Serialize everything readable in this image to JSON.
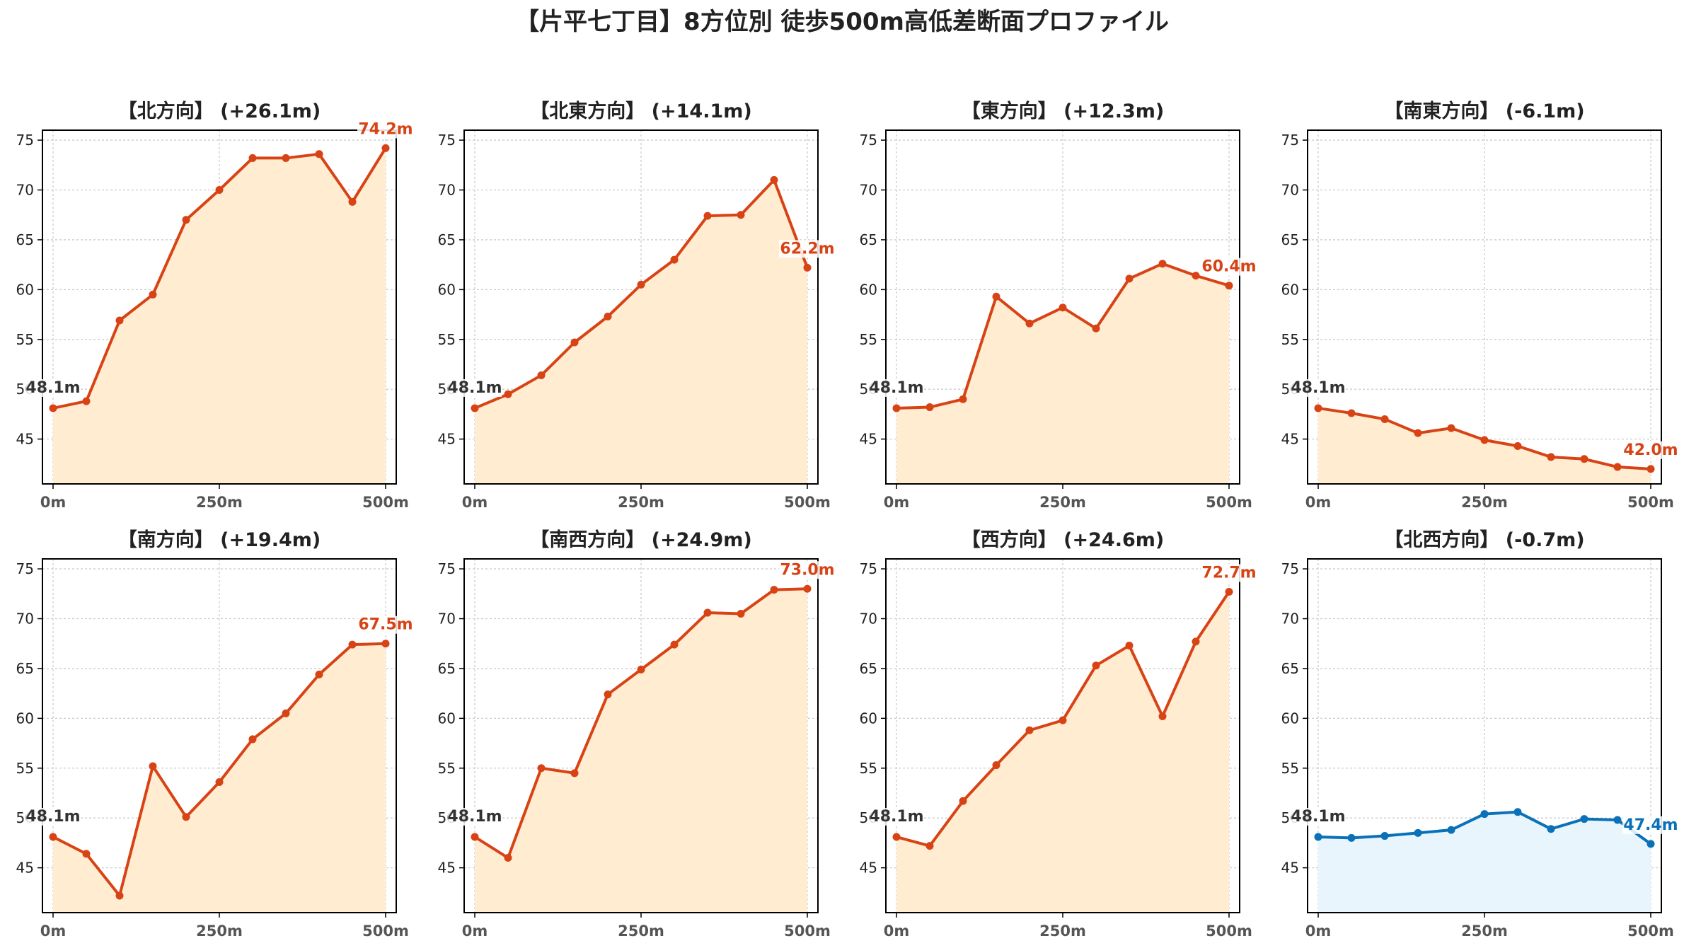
{
  "figure": {
    "title": "【片平七丁目】8方位別 徒歩500m高低差断面プロファイル"
  },
  "style": {
    "up_line_color": "#d84315",
    "up_fill_color": "#ffecd1",
    "down_line_color": "#0a71b8",
    "down_fill_color": "#e8f5fc",
    "start_label_color": "#333333",
    "grid": true
  },
  "chart_data": [
    {
      "type": "area",
      "title": "【北方向】 (+26.1m)",
      "x": [
        0,
        50,
        100,
        150,
        200,
        250,
        300,
        350,
        400,
        450,
        500
      ],
      "values": [
        48.1,
        48.8,
        56.9,
        59.5,
        67.0,
        70.0,
        73.2,
        73.2,
        73.6,
        68.8,
        74.2
      ],
      "start_label": "48.1m",
      "end_label": "74.2m",
      "trend": "up",
      "ylim": [
        40.5,
        76
      ],
      "yticks": [
        45,
        50,
        55,
        60,
        65,
        70,
        75
      ],
      "xticks": [
        0,
        250,
        500
      ],
      "xtick_labels": [
        "0m",
        "250m",
        "500m"
      ]
    },
    {
      "type": "area",
      "title": "【北東方向】 (+14.1m)",
      "x": [
        0,
        50,
        100,
        150,
        200,
        250,
        300,
        350,
        400,
        450,
        500
      ],
      "values": [
        48.1,
        49.5,
        51.4,
        54.7,
        57.3,
        60.5,
        63.0,
        67.4,
        67.5,
        71.0,
        62.2
      ],
      "start_label": "48.1m",
      "end_label": "62.2m",
      "trend": "up",
      "ylim": [
        40.5,
        76
      ],
      "yticks": [
        45,
        50,
        55,
        60,
        65,
        70,
        75
      ],
      "xticks": [
        0,
        250,
        500
      ],
      "xtick_labels": [
        "0m",
        "250m",
        "500m"
      ]
    },
    {
      "type": "area",
      "title": "【東方向】 (+12.3m)",
      "x": [
        0,
        50,
        100,
        150,
        200,
        250,
        300,
        350,
        400,
        450,
        500
      ],
      "values": [
        48.1,
        48.2,
        49.0,
        59.3,
        56.6,
        58.2,
        56.1,
        61.1,
        62.6,
        61.4,
        60.4
      ],
      "start_label": "48.1m",
      "end_label": "60.4m",
      "trend": "up",
      "ylim": [
        40.5,
        76
      ],
      "yticks": [
        45,
        50,
        55,
        60,
        65,
        70,
        75
      ],
      "xticks": [
        0,
        250,
        500
      ],
      "xtick_labels": [
        "0m",
        "250m",
        "500m"
      ]
    },
    {
      "type": "area",
      "title": "【南東方向】 (-6.1m)",
      "x": [
        0,
        50,
        100,
        150,
        200,
        250,
        300,
        350,
        400,
        450,
        500
      ],
      "values": [
        48.1,
        47.6,
        47.0,
        45.6,
        46.1,
        44.9,
        44.3,
        43.2,
        43.0,
        42.2,
        42.0
      ],
      "start_label": "48.1m",
      "end_label": "42.0m",
      "trend": "up",
      "ylim": [
        40.5,
        76
      ],
      "yticks": [
        45,
        50,
        55,
        60,
        65,
        70,
        75
      ],
      "xticks": [
        0,
        250,
        500
      ],
      "xtick_labels": [
        "0m",
        "250m",
        "500m"
      ]
    },
    {
      "type": "area",
      "title": "【南方向】 (+19.4m)",
      "x": [
        0,
        50,
        100,
        150,
        200,
        250,
        300,
        350,
        400,
        450,
        500
      ],
      "values": [
        48.1,
        46.4,
        42.2,
        55.2,
        50.1,
        53.6,
        57.9,
        60.5,
        64.4,
        67.4,
        67.5
      ],
      "start_label": "48.1m",
      "end_label": "67.5m",
      "trend": "up",
      "ylim": [
        40.5,
        76
      ],
      "yticks": [
        45,
        50,
        55,
        60,
        65,
        70,
        75
      ],
      "xticks": [
        0,
        250,
        500
      ],
      "xtick_labels": [
        "0m",
        "250m",
        "500m"
      ]
    },
    {
      "type": "area",
      "title": "【南西方向】 (+24.9m)",
      "x": [
        0,
        50,
        100,
        150,
        200,
        250,
        300,
        350,
        400,
        450,
        500
      ],
      "values": [
        48.1,
        46.0,
        55.0,
        54.5,
        62.4,
        64.9,
        67.4,
        70.6,
        70.5,
        72.9,
        73.0
      ],
      "start_label": "48.1m",
      "end_label": "73.0m",
      "trend": "up",
      "ylim": [
        40.5,
        76
      ],
      "yticks": [
        45,
        50,
        55,
        60,
        65,
        70,
        75
      ],
      "xticks": [
        0,
        250,
        500
      ],
      "xtick_labels": [
        "0m",
        "250m",
        "500m"
      ]
    },
    {
      "type": "area",
      "title": "【西方向】 (+24.6m)",
      "x": [
        0,
        50,
        100,
        150,
        200,
        250,
        300,
        350,
        400,
        450,
        500
      ],
      "values": [
        48.1,
        47.2,
        51.7,
        55.3,
        58.8,
        59.8,
        65.3,
        67.3,
        60.2,
        67.7,
        72.7
      ],
      "start_label": "48.1m",
      "end_label": "72.7m",
      "trend": "up",
      "ylim": [
        40.5,
        76
      ],
      "yticks": [
        45,
        50,
        55,
        60,
        65,
        70,
        75
      ],
      "xticks": [
        0,
        250,
        500
      ],
      "xtick_labels": [
        "0m",
        "250m",
        "500m"
      ]
    },
    {
      "type": "area",
      "title": "【北西方向】 (-0.7m)",
      "x": [
        0,
        50,
        100,
        150,
        200,
        250,
        300,
        350,
        400,
        450,
        500
      ],
      "values": [
        48.1,
        48.0,
        48.2,
        48.5,
        48.8,
        50.4,
        50.6,
        48.9,
        49.9,
        49.8,
        47.4
      ],
      "start_label": "48.1m",
      "end_label": "47.4m",
      "trend": "down",
      "ylim": [
        40.5,
        76
      ],
      "yticks": [
        45,
        50,
        55,
        60,
        65,
        70,
        75
      ],
      "xticks": [
        0,
        250,
        500
      ],
      "xtick_labels": [
        "0m",
        "250m",
        "500m"
      ]
    }
  ]
}
